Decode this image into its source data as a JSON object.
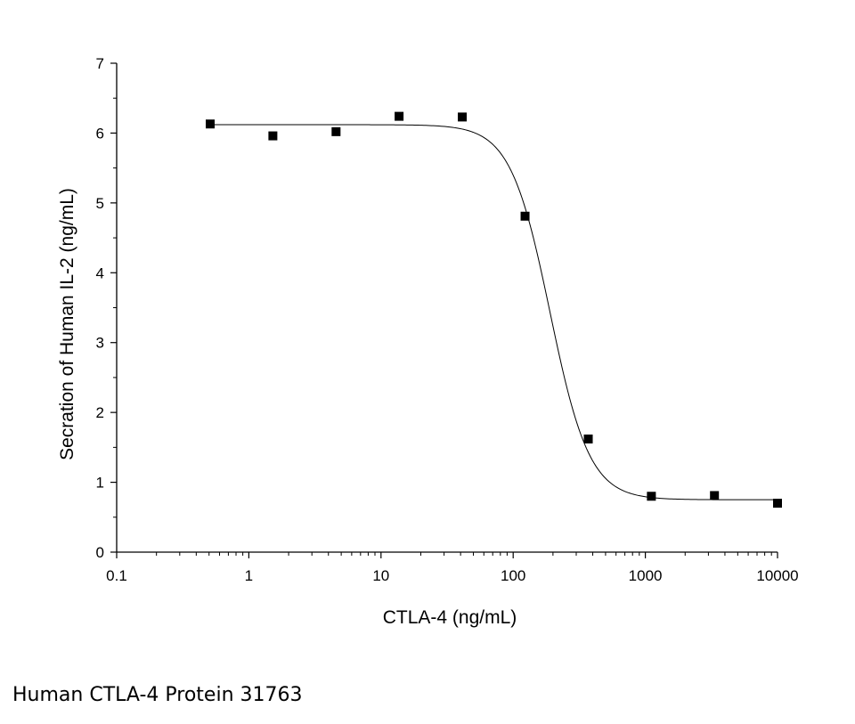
{
  "chart_data": {
    "type": "scatter",
    "xscale": "log",
    "xlim": [
      0.1,
      10000
    ],
    "ylim": [
      0,
      7
    ],
    "xlabel": "CTLA-4 (ng/mL)",
    "ylabel": "Secration of Human IL-2 (ng/mL)",
    "x_tick_labels": [
      "0.1",
      "1",
      "10",
      "100",
      "1000",
      "10000"
    ],
    "y_tick_labels": [
      "0",
      "1",
      "2",
      "3",
      "4",
      "5",
      "6",
      "7"
    ],
    "grid": false,
    "legend": "none",
    "series": [
      {
        "marker": "square",
        "color": "#000000",
        "points": [
          {
            "x": 0.51,
            "y": 6.13
          },
          {
            "x": 1.52,
            "y": 5.96
          },
          {
            "x": 4.57,
            "y": 6.02
          },
          {
            "x": 13.7,
            "y": 6.24
          },
          {
            "x": 41.2,
            "y": 6.23
          },
          {
            "x": 123,
            "y": 4.81
          },
          {
            "x": 370,
            "y": 1.62
          },
          {
            "x": 1111,
            "y": 0.8
          },
          {
            "x": 3333,
            "y": 0.81
          },
          {
            "x": 10000,
            "y": 0.7
          }
        ]
      }
    ],
    "fit": {
      "model": "four-parameter-logistic",
      "top": 6.12,
      "bottom": 0.75,
      "ec50": 190,
      "hill": 2.9,
      "x_range": [
        0.51,
        10000
      ],
      "color": "#000000"
    }
  },
  "caption": "Human CTLA-4 Protein 31763"
}
